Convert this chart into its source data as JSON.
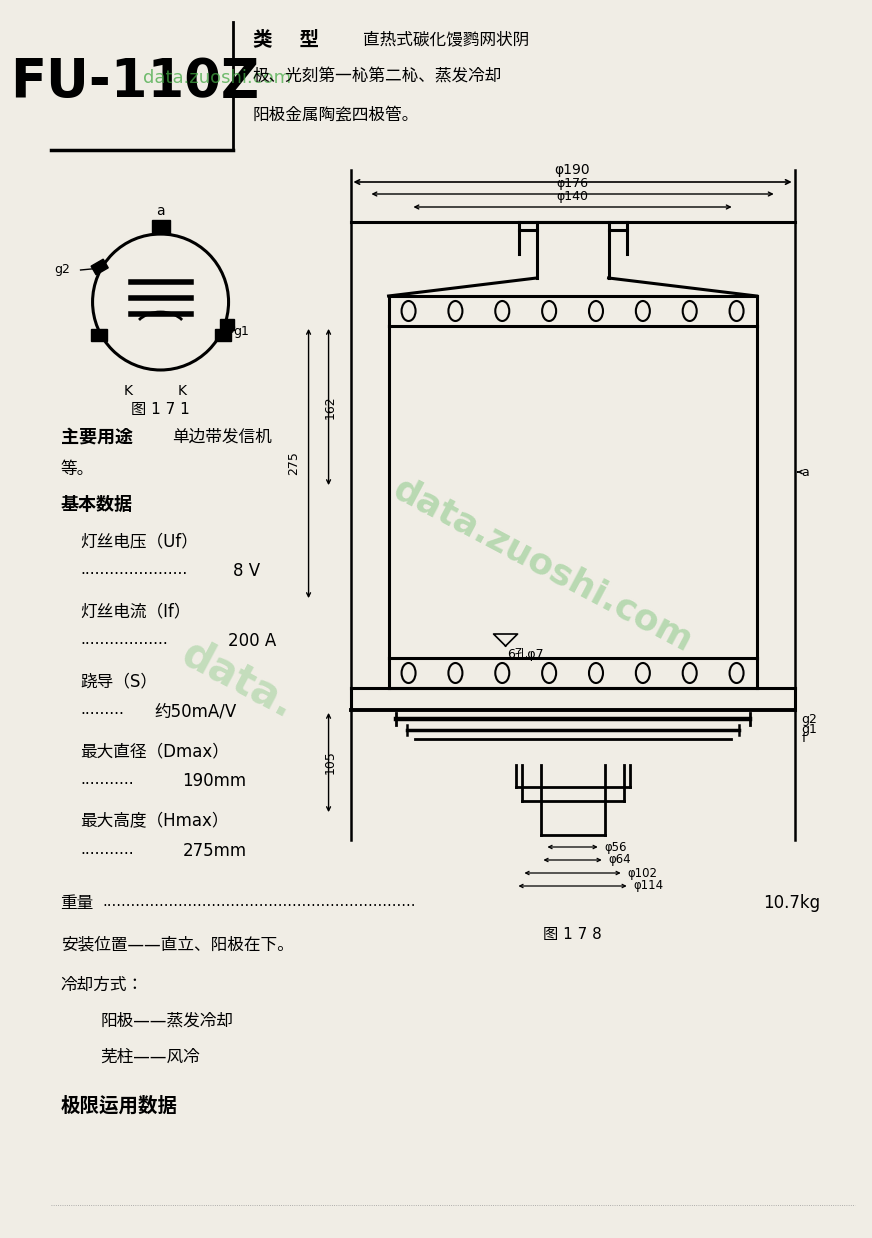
{
  "bg_color": "#f0ede5",
  "title": "FU-110Z",
  "watermark": "data.zuoshi.com",
  "type_label": "类    型",
  "type_desc_line1": "直热式碳化馒鹨网状阴",
  "type_desc_line2": "极、光刻第一杺第二杺、蒸发冷却",
  "type_desc_line3": "阳极金属陶瓷四极管。",
  "fig171_label": "图 1 7 1",
  "fig178_label": "图 1 7 8",
  "main_use_label": "主要用途",
  "basic_data_label": "基本数据",
  "uf_label": "灯丝电压（Uf）",
  "uf_value": "8 V",
  "if_label": "灯丝电流（If）",
  "if_value": "200 A",
  "s_label": "跷导（S）",
  "s_value": "约50mA/V",
  "dmax_label": "最大直径（Dmax）",
  "dmax_value": "190mm",
  "hmax_label": "最大高度（Hmax）",
  "hmax_value": "275mm",
  "weight_label": "重量",
  "weight_value": "10.7kg",
  "install_label": "安装位置——直立、阳极在下。",
  "cool_label": "冷却方式：",
  "cool_anode": "阳极——蒸发冷却",
  "cool_core": "芜柱——风冷",
  "limit_label": "极限运用数据",
  "main_use_text1": "单边带发信机",
  "main_use_text2": "等。",
  "phi190": "φ190",
  "phi176": "φ176",
  "phi140": "φ140",
  "phi56": "φ56",
  "phi64": "φ64",
  "phi102": "φ102",
  "phi114": "φ114",
  "holes_label": "6孔φ7",
  "dim_162": "162",
  "dim_275": "275",
  "dim_105": "105"
}
